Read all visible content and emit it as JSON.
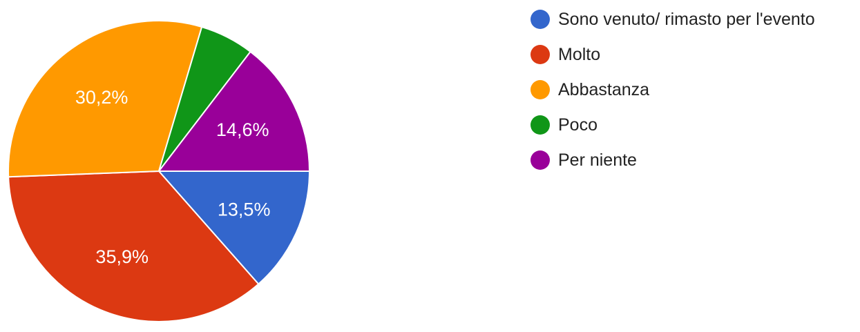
{
  "chart_data": {
    "type": "pie",
    "categories": [
      "Sono venuto/ rimasto per l'evento",
      "Molto",
      "Abbastanza",
      "Poco",
      "Per niente"
    ],
    "values": [
      13.5,
      35.9,
      30.2,
      5.8,
      14.6
    ],
    "colors": [
      "#3366cc",
      "#dc3912",
      "#ff9900",
      "#109618",
      "#990099"
    ],
    "data_labels": [
      "13,5%",
      "35,9%",
      "30,2%",
      "",
      "14,6%"
    ],
    "legend_position": "right"
  }
}
